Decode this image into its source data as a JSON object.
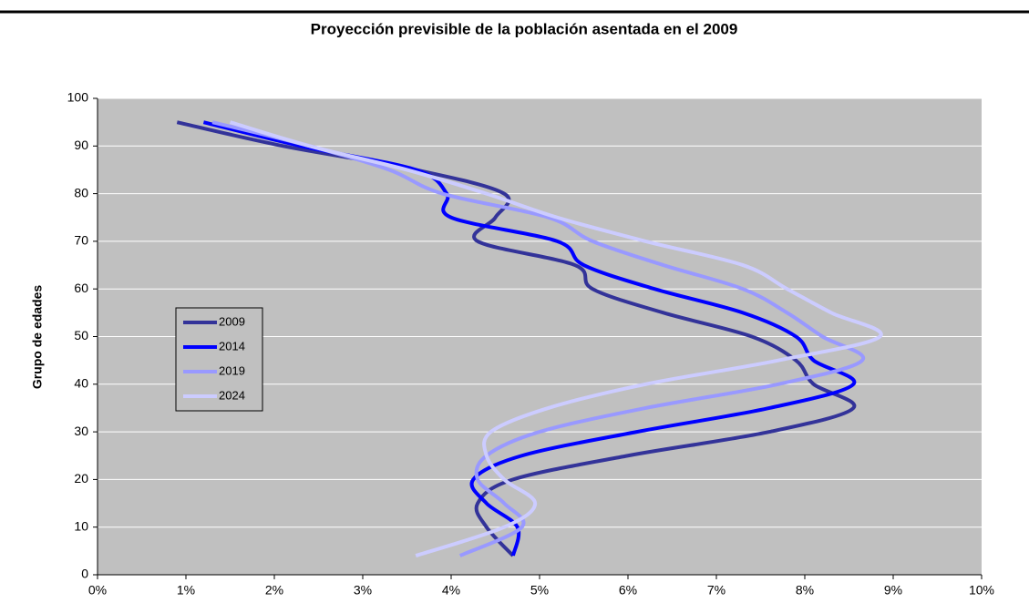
{
  "chart_data": {
    "type": "line",
    "title": "Proyección  previsible de la población asentada en el 2009",
    "y_label": "Grupo de edades",
    "y": [
      4,
      10,
      15,
      20,
      25,
      30,
      35,
      40,
      45,
      50,
      55,
      60,
      65,
      70,
      75,
      80,
      85,
      90,
      95
    ],
    "series": [
      {
        "name": "2009",
        "color": "#333399",
        "values": [
          4.7,
          4.4,
          4.3,
          4.7,
          6.0,
          7.6,
          8.55,
          8.1,
          7.9,
          7.4,
          6.4,
          5.6,
          5.4,
          4.3,
          4.5,
          4.6,
          3.6,
          2.1,
          0.9
        ]
      },
      {
        "name": "2014",
        "color": "#0000ff",
        "values": [
          4.7,
          4.75,
          4.4,
          4.25,
          4.8,
          6.1,
          7.6,
          8.55,
          8.1,
          7.9,
          7.3,
          6.3,
          5.5,
          5.2,
          4.0,
          3.95,
          3.6,
          2.3,
          1.2
        ]
      },
      {
        "name": "2019",
        "color": "#9999ff",
        "values": [
          4.1,
          4.8,
          4.6,
          4.3,
          4.4,
          5.0,
          6.2,
          7.7,
          8.65,
          8.2,
          7.8,
          7.3,
          6.4,
          5.6,
          5.1,
          3.9,
          3.3,
          2.4,
          1.3
        ]
      },
      {
        "name": "2024",
        "color": "#ccccff",
        "values": [
          3.6,
          4.6,
          4.95,
          4.6,
          4.4,
          4.45,
          5.1,
          6.2,
          7.7,
          8.85,
          8.3,
          7.8,
          7.3,
          6.2,
          5.2,
          4.4,
          3.5,
          2.4,
          1.5
        ]
      }
    ],
    "xlim": [
      0,
      10
    ],
    "xticks": [
      {
        "value": 0,
        "label": "0%"
      },
      {
        "value": 1,
        "label": "1%"
      },
      {
        "value": 2,
        "label": "2%"
      },
      {
        "value": 3,
        "label": "3%"
      },
      {
        "value": 4,
        "label": "4%"
      },
      {
        "value": 5,
        "label": "5%"
      },
      {
        "value": 6,
        "label": "6%"
      },
      {
        "value": 7,
        "label": "7%"
      },
      {
        "value": 8,
        "label": "8%"
      },
      {
        "value": 9,
        "label": "9%"
      },
      {
        "value": 10,
        "label": "10%"
      }
    ],
    "ylim": [
      0,
      100
    ],
    "yticks": [
      0,
      10,
      20,
      30,
      40,
      50,
      60,
      70,
      80,
      90,
      100
    ],
    "grid": true,
    "plot_background": "#c0c0c0"
  }
}
